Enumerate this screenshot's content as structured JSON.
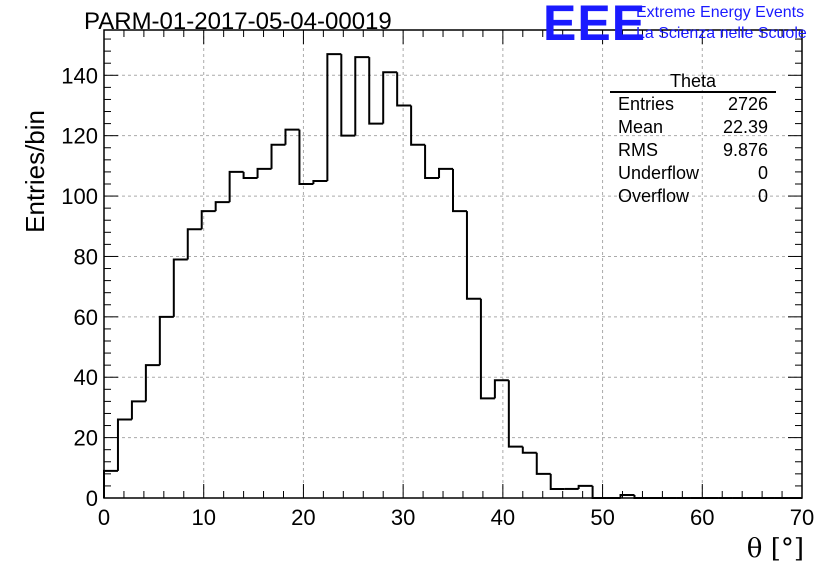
{
  "chart_data": {
    "type": "histogram",
    "title": "PARM-01-2017-05-04-00019",
    "xlabel": "θ [°]",
    "ylabel": "Entries/bin",
    "xlim": [
      0,
      70
    ],
    "ylim": [
      0,
      155
    ],
    "x_ticks": [
      0,
      10,
      20,
      30,
      40,
      50,
      60,
      70
    ],
    "y_ticks": [
      0,
      20,
      40,
      60,
      80,
      100,
      120,
      140
    ],
    "grid": true,
    "bin_width": 1.4,
    "bin_start": 0,
    "values": [
      9,
      26,
      32,
      44,
      60,
      79,
      89,
      95,
      98,
      108,
      106,
      109,
      117,
      122,
      104,
      105,
      147,
      120,
      146,
      124,
      141,
      130,
      117,
      106,
      109,
      95,
      66,
      33,
      39,
      17,
      15,
      8,
      3,
      3,
      4,
      0,
      0,
      1,
      0,
      0,
      0,
      0,
      0,
      0,
      0,
      0,
      0,
      0,
      0,
      0
    ],
    "stats_box": {
      "title": "Theta",
      "rows": [
        {
          "label": "Entries",
          "value": "2726"
        },
        {
          "label": "Mean",
          "value": "22.39"
        },
        {
          "label": "RMS",
          "value": "9.876"
        },
        {
          "label": "Underflow",
          "value": "0"
        },
        {
          "label": "Overflow",
          "value": "0"
        }
      ]
    }
  },
  "logo": {
    "text": "EEE",
    "line1": "Extreme Energy Events",
    "line2": "La Scienza nelle Scuole"
  },
  "colors": {
    "logo": "#1a1aff",
    "line": "#000000",
    "grid": "#aaaaaa"
  }
}
